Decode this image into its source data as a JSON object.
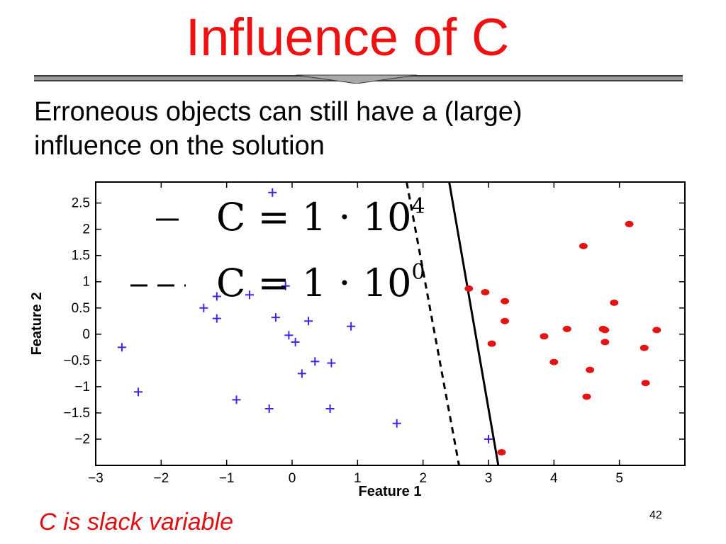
{
  "slide": {
    "title": "Influence of C",
    "subtitle_line1": "Erroneous objects can still have a (large)",
    "subtitle_line2": "influence on the solution",
    "footer_note": "C is slack variable",
    "page_number": "42",
    "title_color": "#ee1111",
    "note_color": "#e01010"
  },
  "chart_data": {
    "type": "scatter",
    "xlabel": "Feature 1",
    "ylabel": "Feature 2",
    "xlim": [
      -3,
      6
    ],
    "ylim": [
      -2.5,
      2.9
    ],
    "x_ticks": [
      "−3",
      "−2",
      "−1",
      "0",
      "1",
      "2",
      "3",
      "4",
      "5"
    ],
    "y_ticks": [
      "2.5",
      "2",
      "1.5",
      "1",
      "0.5",
      "0",
      "−0.5",
      "−1",
      "−1.5",
      "−2"
    ],
    "grid": false,
    "legend_location": "top-left",
    "legend": [
      {
        "line_style": "solid",
        "label_prefix": "C = 1 · 10",
        "exponent": "4"
      },
      {
        "line_style": "dashed",
        "label_prefix": "C = 1 · 10",
        "exponent": "0"
      }
    ],
    "series": [
      {
        "marker": "plus",
        "color": "#4422ee",
        "points": [
          [
            -2.6,
            -0.25
          ],
          [
            -2.35,
            -1.1
          ],
          [
            -1.35,
            0.5
          ],
          [
            -1.15,
            0.72
          ],
          [
            -1.15,
            0.3
          ],
          [
            -0.85,
            -1.25
          ],
          [
            -0.65,
            0.75
          ],
          [
            -0.35,
            -1.42
          ],
          [
            -0.3,
            2.7
          ],
          [
            -0.25,
            0.32
          ],
          [
            -0.1,
            0.92
          ],
          [
            -0.05,
            -0.02
          ],
          [
            0.05,
            -0.15
          ],
          [
            0.15,
            -0.75
          ],
          [
            0.25,
            0.25
          ],
          [
            0.35,
            -0.52
          ],
          [
            0.6,
            -0.55
          ],
          [
            0.58,
            -1.42
          ],
          [
            0.9,
            0.15
          ],
          [
            1.6,
            -1.7
          ],
          [
            3.0,
            -2.0
          ]
        ]
      },
      {
        "marker": "dot",
        "color": "#e41414",
        "points": [
          [
            2.7,
            0.87
          ],
          [
            2.95,
            0.8
          ],
          [
            3.05,
            -0.18
          ],
          [
            3.25,
            0.63
          ],
          [
            3.25,
            0.25
          ],
          [
            3.2,
            -2.25
          ],
          [
            3.85,
            -0.04
          ],
          [
            4.0,
            -0.53
          ],
          [
            4.2,
            0.1
          ],
          [
            4.45,
            1.68
          ],
          [
            4.5,
            -1.19
          ],
          [
            4.55,
            -0.68
          ],
          [
            4.75,
            0.1
          ],
          [
            4.78,
            0.08
          ],
          [
            4.78,
            -0.15
          ],
          [
            4.92,
            0.6
          ],
          [
            5.15,
            2.1
          ],
          [
            5.38,
            -0.26
          ],
          [
            5.4,
            -0.93
          ],
          [
            5.57,
            0.08
          ]
        ]
      }
    ],
    "boundaries": [
      {
        "line_style": "solid",
        "from": [
          2.4,
          2.9
        ],
        "to": [
          3.15,
          -2.5
        ]
      },
      {
        "line_style": "dashed",
        "from": [
          1.75,
          2.9
        ],
        "to": [
          2.55,
          -2.5
        ]
      }
    ]
  }
}
